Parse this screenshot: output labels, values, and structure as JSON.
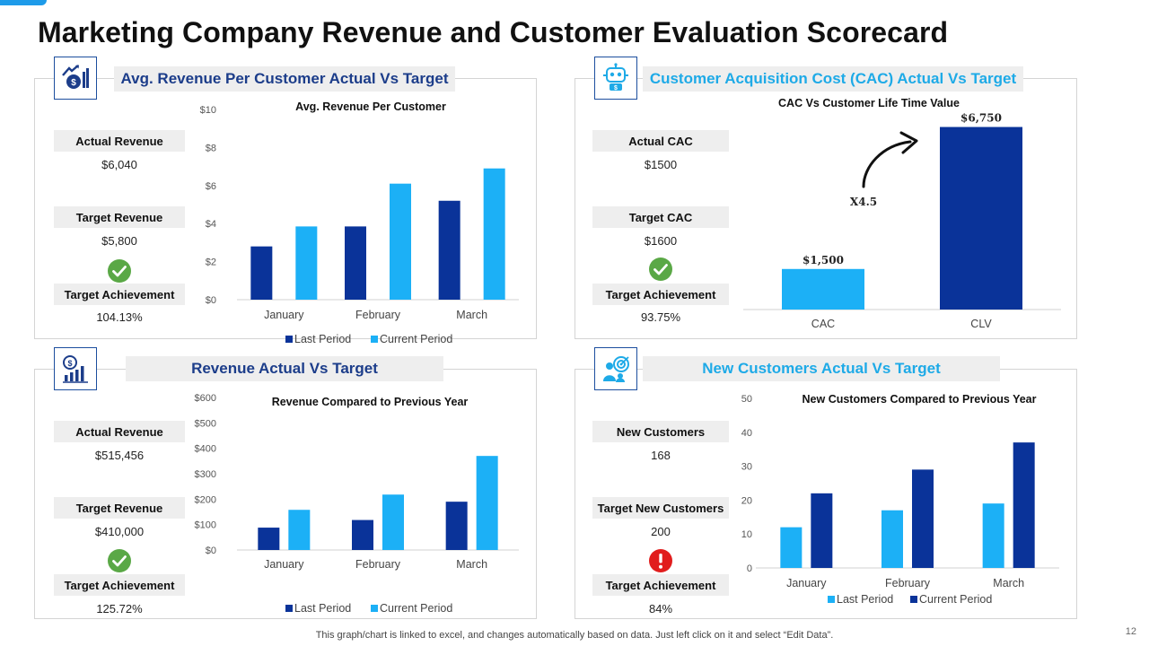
{
  "title": "Marketing Company Revenue and Customer Evaluation Scorecard",
  "footer": "This graph/chart is linked to excel, and changes automatically based on data. Just left click on it and select “Edit Data”.",
  "page_number": "12",
  "colors": {
    "dark_blue": "#0a3399",
    "light_blue": "#1cb0f6",
    "check_green": "#5aa846",
    "alert_red": "#e11d1d"
  },
  "panels": {
    "arpc": {
      "header": "Avg. Revenue Per Customer Actual Vs Target",
      "icon": "revenue-growth-icon",
      "stats": [
        {
          "label": "Actual Revenue",
          "value": "$6,040"
        },
        {
          "label": "Target Revenue",
          "value": "$5,800"
        },
        {
          "label": "Target Achievement",
          "value": "104.13%"
        }
      ],
      "status_icon": "check-circle-icon"
    },
    "cac": {
      "header": "Customer Acquisition Cost (CAC) Actual Vs Target",
      "icon": "robot-icon",
      "stats": [
        {
          "label": "Actual CAC",
          "value": "$1500"
        },
        {
          "label": "Target CAC",
          "value": "$1600"
        },
        {
          "label": "Target Achievement",
          "value": "93.75%"
        }
      ],
      "status_icon": "check-circle-icon"
    },
    "revenue": {
      "header": "Revenue Actual Vs Target",
      "icon": "revenue-chart-icon",
      "stats": [
        {
          "label": "Actual Revenue",
          "value": "$515,456"
        },
        {
          "label": "Target Revenue",
          "value": "$410,000"
        },
        {
          "label": "Target Achievement",
          "value": "125.72%"
        }
      ],
      "status_icon": "check-circle-icon"
    },
    "newcust": {
      "header": "New Customers Actual Vs Target",
      "icon": "customer-target-icon",
      "stats": [
        {
          "label": "New Customers",
          "value": "168"
        },
        {
          "label": "Target New Customers",
          "value": "200"
        },
        {
          "label": "Target Achievement",
          "value": "84%"
        }
      ],
      "status_icon": "alert-circle-icon"
    }
  },
  "chart_data": [
    {
      "id": "arpc",
      "type": "bar",
      "title": "Avg. Revenue Per Customer",
      "categories": [
        "January",
        "February",
        "March"
      ],
      "series": [
        {
          "name": "Last Period",
          "color": "#0a3399",
          "values": [
            2.8,
            3.85,
            5.2
          ]
        },
        {
          "name": "Current Period",
          "color": "#1cb0f6",
          "values": [
            3.85,
            6.1,
            6.9
          ]
        }
      ],
      "ylim": [
        0,
        10
      ],
      "yticks": [
        0,
        2,
        4,
        6,
        8,
        10
      ],
      "ytick_labels": [
        "$0",
        "$2",
        "$4",
        "$6",
        "$8",
        "$10"
      ],
      "legend": "bottom"
    },
    {
      "id": "cac",
      "type": "bar",
      "title": "CAC Vs Customer Life Time Value",
      "categories": [
        "CAC",
        "CLV"
      ],
      "values": [
        1500,
        6750
      ],
      "colors": [
        "#1cb0f6",
        "#0a3399"
      ],
      "data_labels": [
        "$1,500",
        "$6,750"
      ],
      "annotation": "X4.5",
      "ylim": [
        0,
        7000
      ]
    },
    {
      "id": "revenue",
      "type": "bar",
      "title": "Revenue  Compared to Previous Year",
      "categories": [
        "January",
        "February",
        "March"
      ],
      "series": [
        {
          "name": "Last Period",
          "color": "#0a3399",
          "values": [
            88,
            118,
            190
          ]
        },
        {
          "name": "Current Period",
          "color": "#1cb0f6",
          "values": [
            158,
            218,
            370
          ]
        }
      ],
      "ylim": [
        0,
        600
      ],
      "yticks": [
        0,
        100,
        200,
        300,
        400,
        500,
        600
      ],
      "ytick_labels": [
        "$0",
        "$100",
        "$200",
        "$300",
        "$400",
        "$500",
        "$600"
      ],
      "legend": "bottom"
    },
    {
      "id": "newcust",
      "type": "bar",
      "title": "New Customers Compared to Previous Year",
      "categories": [
        "January",
        "February",
        "March"
      ],
      "series": [
        {
          "name": "Last Period",
          "color": "#1cb0f6",
          "values": [
            12,
            17,
            19
          ]
        },
        {
          "name": "Current Period",
          "color": "#0a3399",
          "values": [
            22,
            29,
            37
          ]
        }
      ],
      "ylim": [
        0,
        50
      ],
      "yticks": [
        0,
        10,
        20,
        30,
        40,
        50
      ],
      "ytick_labels": [
        "0",
        "10",
        "20",
        "30",
        "40",
        "50"
      ],
      "legend": "bottom"
    }
  ]
}
